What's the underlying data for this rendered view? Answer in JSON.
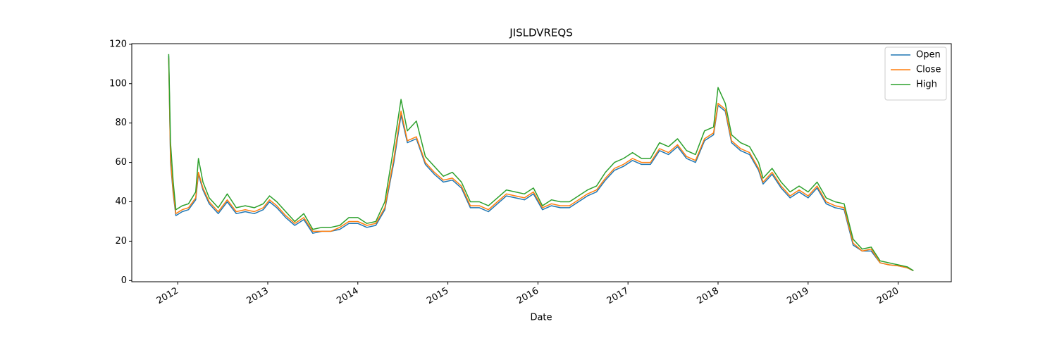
{
  "chart_data": {
    "type": "line",
    "title": "JISLDVREQS",
    "xlabel": "Date",
    "x": [
      2011.9,
      2011.92,
      2011.95,
      2011.98,
      2012.05,
      2012.12,
      2012.2,
      2012.23,
      2012.28,
      2012.35,
      2012.45,
      2012.55,
      2012.65,
      2012.75,
      2012.85,
      2012.95,
      2013.02,
      2013.1,
      2013.2,
      2013.3,
      2013.4,
      2013.5,
      2013.6,
      2013.7,
      2013.8,
      2013.9,
      2014.0,
      2014.1,
      2014.2,
      2014.3,
      2014.4,
      2014.48,
      2014.55,
      2014.65,
      2014.75,
      2014.85,
      2014.95,
      2015.05,
      2015.15,
      2015.25,
      2015.35,
      2015.45,
      2015.55,
      2015.65,
      2015.75,
      2015.85,
      2015.95,
      2016.05,
      2016.15,
      2016.25,
      2016.35,
      2016.45,
      2016.55,
      2016.65,
      2016.75,
      2016.85,
      2016.95,
      2017.05,
      2017.15,
      2017.25,
      2017.35,
      2017.45,
      2017.55,
      2017.65,
      2017.75,
      2017.85,
      2017.95,
      2018.0,
      2018.08,
      2018.15,
      2018.25,
      2018.35,
      2018.45,
      2018.5,
      2018.6,
      2018.7,
      2018.8,
      2018.9,
      2019.0,
      2019.1,
      2019.2,
      2019.3,
      2019.4,
      2019.45,
      2019.5,
      2019.6,
      2019.7,
      2019.8,
      2019.9,
      2020.0,
      2020.1,
      2020.17
    ],
    "series": [
      {
        "name": "Open",
        "color": "#1f77b4",
        "values": [
          114,
          60,
          44,
          33,
          35,
          36,
          41,
          54,
          46,
          39,
          34,
          40,
          34,
          35,
          34,
          36,
          40,
          37,
          32,
          28,
          31,
          24,
          25,
          25,
          26,
          29,
          29,
          27,
          28,
          36,
          60,
          84,
          70,
          72,
          59,
          54,
          50,
          51,
          47,
          37,
          37,
          35,
          39,
          43,
          42,
          41,
          44,
          36,
          38,
          37,
          37,
          40,
          43,
          45,
          51,
          56,
          58,
          61,
          59,
          59,
          66,
          64,
          68,
          62,
          60,
          71,
          74,
          89,
          86,
          70,
          66,
          64,
          56,
          49,
          54,
          47,
          42,
          45,
          42,
          47,
          39,
          37,
          36,
          27,
          18,
          15,
          15,
          9,
          8,
          7.5,
          6.5,
          5
        ]
      },
      {
        "name": "Close",
        "color": "#ff7f0e",
        "values": [
          113,
          62,
          45,
          34,
          36,
          37,
          42,
          55,
          47,
          40,
          35,
          41,
          35,
          36,
          35,
          37,
          41,
          38,
          33,
          29,
          32,
          25,
          25,
          25,
          27,
          30,
          30,
          28,
          29,
          37,
          62,
          86,
          71,
          73,
          60,
          55,
          51,
          52,
          48,
          38,
          38,
          36,
          40,
          44,
          43,
          42,
          45,
          37,
          39,
          38,
          38,
          41,
          44,
          46,
          52,
          57,
          59,
          62,
          60,
          60,
          67,
          65,
          69,
          63,
          61,
          72,
          75,
          90,
          87,
          71,
          67,
          65,
          57,
          50,
          55,
          48,
          43,
          46,
          43,
          48,
          40,
          38,
          37,
          28,
          19,
          15,
          16,
          9,
          8,
          7.5,
          6.5,
          5
        ]
      },
      {
        "name": "High",
        "color": "#2ca02c",
        "values": [
          115,
          70,
          50,
          36,
          38,
          39,
          45,
          62,
          50,
          42,
          37,
          44,
          37,
          38,
          37,
          39,
          43,
          40,
          35,
          30,
          34,
          26,
          27,
          27,
          28,
          32,
          32,
          29,
          30,
          40,
          68,
          92,
          76,
          81,
          63,
          58,
          53,
          55,
          50,
          40,
          40,
          38,
          42,
          46,
          45,
          44,
          47,
          38,
          41,
          40,
          40,
          43,
          46,
          48,
          55,
          60,
          62,
          65,
          62,
          62,
          70,
          68,
          72,
          66,
          64,
          76,
          78,
          98,
          90,
          74,
          70,
          68,
          60,
          52,
          57,
          50,
          45,
          48,
          45,
          50,
          42,
          40,
          39,
          30,
          21,
          16,
          17,
          10,
          9,
          8,
          7,
          5
        ]
      }
    ],
    "xlim": [
      2011.49,
      2020.59
    ],
    "xticks": [
      2012,
      2013,
      2014,
      2015,
      2016,
      2017,
      2018,
      2019,
      2020
    ],
    "ylim": [
      -0.6,
      120.3
    ],
    "yticks": [
      0,
      20,
      40,
      60,
      80,
      100,
      120
    ],
    "legend": "upper right"
  }
}
